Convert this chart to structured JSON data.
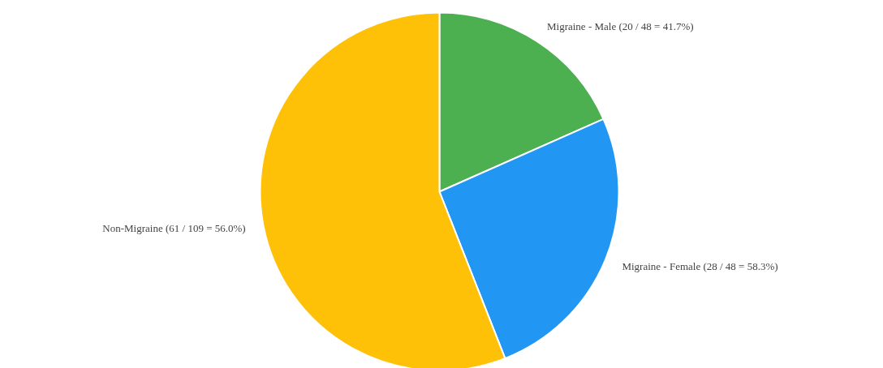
{
  "chart_data": {
    "type": "pie",
    "categories": [
      "Migraine - Male (20 / 48 = 41.7%)",
      "Migraine - Female (28 / 48 = 58.3%)",
      "Non-Migraine (61 / 109 = 56.0%)"
    ],
    "values": [
      20,
      28,
      61
    ],
    "colors": [
      "#4caf50",
      "#2196f3",
      "#ffc107"
    ]
  }
}
